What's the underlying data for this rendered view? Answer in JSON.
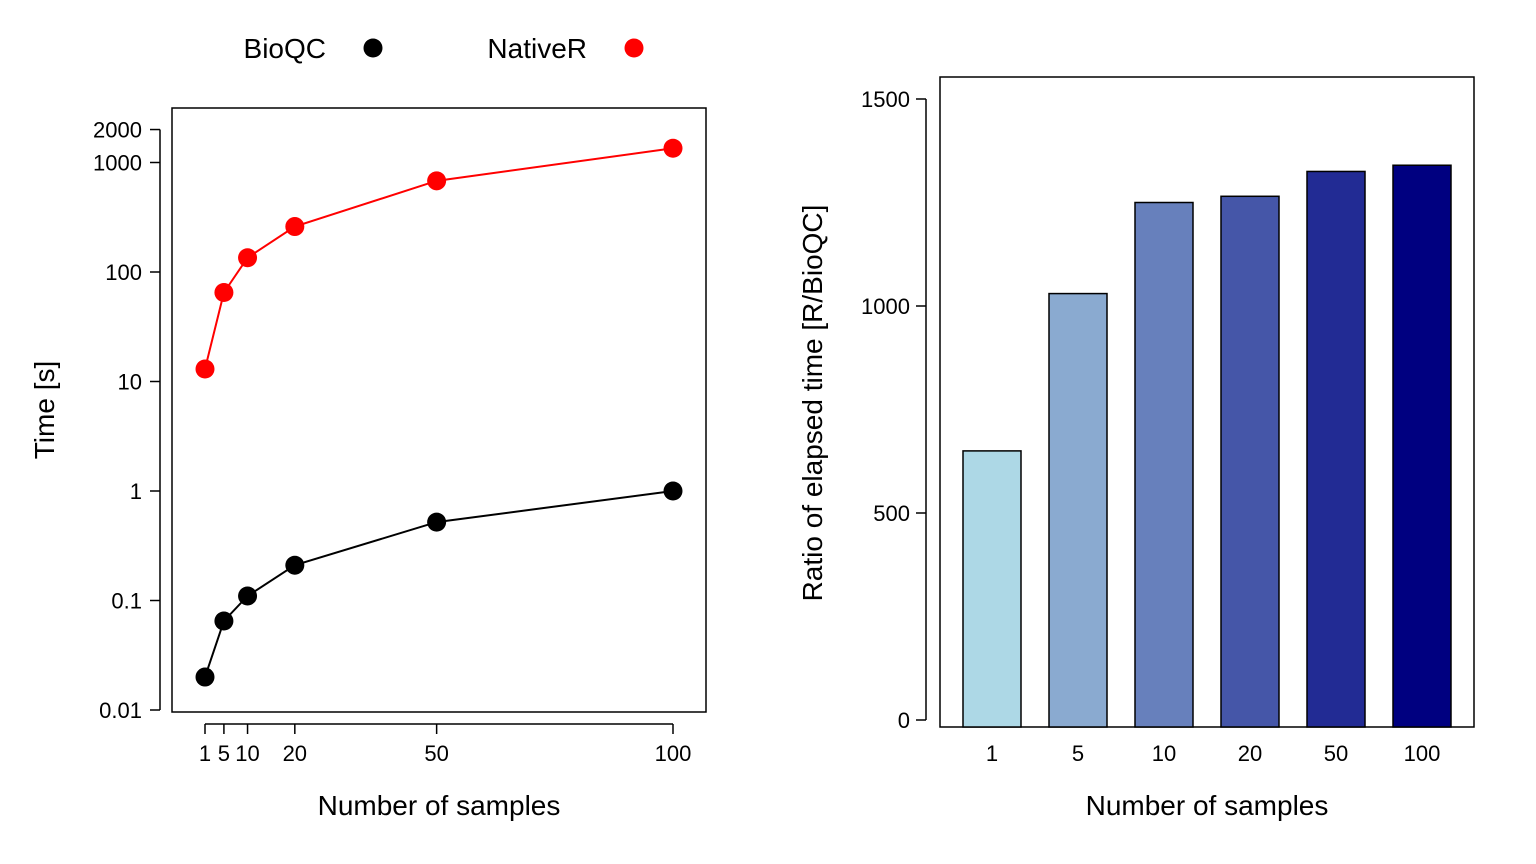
{
  "chart_data": [
    {
      "type": "line",
      "xlabel": "Number of samples",
      "ylabel": "Time [s]",
      "yscale": "log",
      "ylim": [
        0.01,
        3000
      ],
      "xlim": [
        1,
        100
      ],
      "x": [
        1,
        5,
        10,
        20,
        50,
        100
      ],
      "xticks": [
        1,
        5,
        10,
        20,
        50,
        100
      ],
      "xtick_labels": [
        "1",
        "5",
        "10",
        "20",
        "50",
        "100"
      ],
      "yticks": [
        0.01,
        0.1,
        1,
        10,
        100,
        1000,
        2000
      ],
      "ytick_labels": [
        "0.01",
        "0.1",
        "1",
        "10",
        "100",
        "1000",
        "2000"
      ],
      "legend": {
        "placement": "top"
      },
      "grid": false,
      "series": [
        {
          "name": "BioQC",
          "color": "#000000",
          "values": [
            0.02,
            0.065,
            0.11,
            0.21,
            0.52,
            1.0
          ]
        },
        {
          "name": "NativeR",
          "color": "#ff0000",
          "values": [
            13,
            65,
            135,
            260,
            680,
            1350
          ]
        }
      ]
    },
    {
      "type": "bar",
      "xlabel": "Number of samples",
      "ylabel": "Ratio of elapsed time [R/BioQC]",
      "ylim": [
        0,
        1570
      ],
      "categories": [
        "1",
        "5",
        "10",
        "20",
        "50",
        "100"
      ],
      "values": [
        650,
        1030,
        1250,
        1265,
        1325,
        1340
      ],
      "colors": [
        "#add8e6",
        "#8aaad0",
        "#6780bc",
        "#4556a8",
        "#222b94",
        "#000080"
      ],
      "yticks": [
        0,
        500,
        1000,
        1500
      ],
      "ytick_labels": [
        "0",
        "500",
        "1000",
        "1500"
      ],
      "grid": false
    }
  ]
}
